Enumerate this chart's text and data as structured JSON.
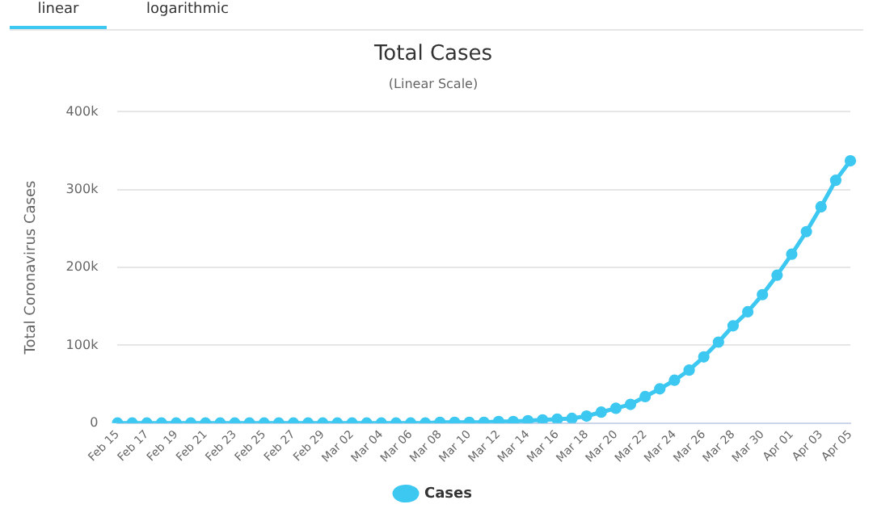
{
  "chart_data": {
    "type": "line",
    "title": "Total Cases",
    "subtitle": "(Linear Scale)",
    "ylabel": "Total Coronavirus Cases",
    "annotations": [
      "linear",
      "logarithmic"
    ],
    "categories": [
      "Feb 15",
      null,
      "Feb 17",
      null,
      "Feb 19",
      null,
      "Feb 21",
      null,
      "Feb 23",
      null,
      "Feb 25",
      null,
      "Feb 27",
      null,
      "Feb 29",
      null,
      "Mar 02",
      null,
      "Mar 04",
      null,
      "Mar 06",
      null,
      "Mar 08",
      null,
      "Mar 10",
      null,
      "Mar 12",
      null,
      "Mar 14",
      null,
      "Mar 16",
      null,
      "Mar 18",
      null,
      "Mar 20",
      null,
      "Mar 22",
      null,
      "Mar 24",
      null,
      "Mar 26",
      null,
      "Mar 28",
      null,
      "Mar 30",
      null,
      "Apr 01",
      null,
      "Apr 03",
      null,
      "Apr 05"
    ],
    "series": [
      {
        "name": "Cases",
        "color": "#3cc8f0",
        "values": [
          0,
          0,
          0,
          0,
          0,
          0,
          0,
          0,
          0,
          0,
          0,
          0,
          0,
          0,
          0,
          0,
          0,
          0,
          0,
          0,
          0,
          0,
          1000,
          1000,
          1000,
          1000,
          2000,
          2000,
          3000,
          4000,
          5000,
          6000,
          9000,
          14000,
          19000,
          24000,
          34000,
          44000,
          55000,
          68000,
          85000,
          104000,
          125000,
          143000,
          165000,
          190000,
          217000,
          246000,
          278000,
          312000,
          337000
        ]
      }
    ],
    "ylim": [
      0,
      400000
    ],
    "yticks": [
      {
        "value": 0,
        "label": "0"
      },
      {
        "value": 100000,
        "label": "100k"
      },
      {
        "value": 200000,
        "label": "200k"
      },
      {
        "value": 300000,
        "label": "300k"
      },
      {
        "value": 400000,
        "label": "400k"
      }
    ],
    "grid": "y",
    "legend": "bottom",
    "marker": "circle",
    "line_style": "solid"
  }
}
